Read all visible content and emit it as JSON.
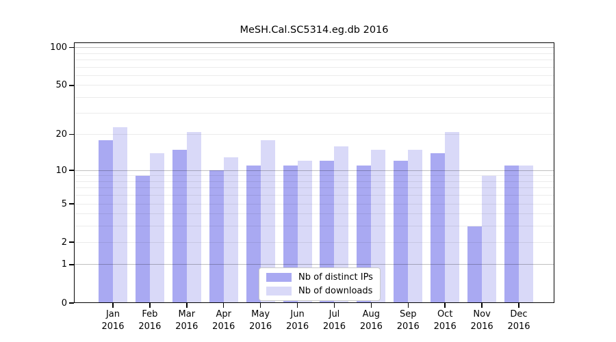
{
  "chart_data": {
    "type": "bar",
    "title": "MeSH.Cal.SC5314.eg.db 2016",
    "categories": [
      "Jan",
      "Feb",
      "Mar",
      "Apr",
      "May",
      "Jun",
      "Jul",
      "Aug",
      "Sep",
      "Oct",
      "Nov",
      "Dec"
    ],
    "x_year_label": "2016",
    "series": [
      {
        "name": "Nb of distinct IPs",
        "color": "#a9a9f2",
        "values": [
          18,
          9,
          15,
          10,
          11,
          11,
          12,
          11,
          12,
          14,
          3,
          11
        ]
      },
      {
        "name": "Nb of downloads",
        "color": "#d9d9f8",
        "values": [
          23,
          14,
          21,
          13,
          18,
          12,
          16,
          15,
          15,
          21,
          9,
          11
        ]
      }
    ],
    "y_scale": "log1p",
    "y_ticks": [
      0,
      1,
      2,
      5,
      10,
      20,
      50,
      100
    ],
    "ylim": [
      0,
      110
    ],
    "grid_major": [
      1,
      10,
      100
    ],
    "grid_minor": [
      2,
      3,
      4,
      5,
      6,
      7,
      8,
      9,
      20,
      30,
      40,
      50,
      60,
      70,
      80,
      90
    ],
    "legend_position": "bottom-center",
    "grid": "on"
  }
}
